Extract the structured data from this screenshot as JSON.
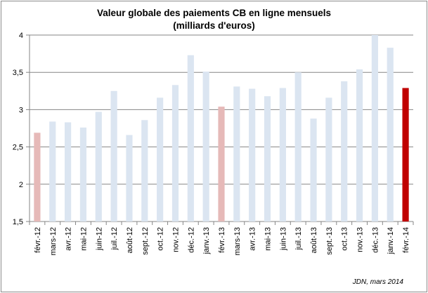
{
  "chart_data": {
    "type": "bar",
    "title": "Valeur globale des paiements CB en ligne mensuels",
    "subtitle": "(milliards d'euros)",
    "categories": [
      "févr.-12",
      "mars-12",
      "avr.-12",
      "mai-12",
      "juin-12",
      "juil.-12",
      "août-12",
      "sept.-12",
      "oct.-12",
      "nov.-12",
      "déc.-12",
      "janv.-13",
      "févr.-13",
      "mars-13",
      "avr.-13",
      "mai-13",
      "juin-13",
      "juil.-13",
      "août-13",
      "sept.-13",
      "oct.-13",
      "nov.-13",
      "déc.-13",
      "janv.-14",
      "févr.-14"
    ],
    "values": [
      2.69,
      2.84,
      2.83,
      2.76,
      2.97,
      3.25,
      2.66,
      2.86,
      3.16,
      3.33,
      3.73,
      3.51,
      3.04,
      3.31,
      3.28,
      3.18,
      3.29,
      3.5,
      2.88,
      3.16,
      3.38,
      3.54,
      4.0,
      3.83,
      3.29
    ],
    "highlight": [
      "feb2012",
      "",
      "",
      "",
      "",
      "",
      "",
      "",
      "",
      "",
      "",
      "",
      "feb2013",
      "",
      "",
      "",
      "",
      "",
      "",
      "",
      "",
      "",
      "",
      "",
      "feb2014"
    ],
    "colors": {
      "default": "#dbe5f1",
      "feb2012": "#e6b9b8",
      "feb2013": "#e6b9b8",
      "feb2014": "#c00000",
      "grid": "#868686"
    },
    "yticks": [
      "1,5",
      "2",
      "2,5",
      "3",
      "3,5",
      "4"
    ],
    "ylim": [
      1.5,
      4
    ],
    "xlabel": "",
    "ylabel": "",
    "grid": true,
    "legend": "none"
  },
  "source": "JDN, mars 2014"
}
